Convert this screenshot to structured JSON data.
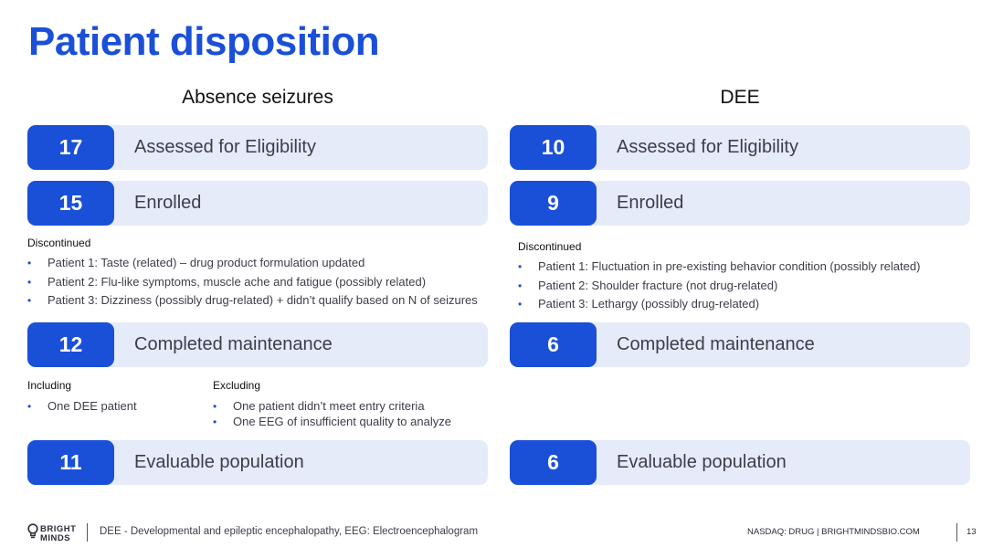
{
  "title": "Patient disposition",
  "left": {
    "heading": "Absence seizures",
    "rows": [
      {
        "count": "17",
        "label": "Assessed for Eligibility"
      },
      {
        "count": "15",
        "label": "Enrolled"
      },
      {
        "count": "12",
        "label": "Completed maintenance"
      },
      {
        "count": "11",
        "label": "Evaluable population"
      }
    ],
    "discontinued": {
      "heading": "Discontinued",
      "items": [
        "Patient 1: Taste (related) – drug product formulation updated",
        "Patient 2: Flu-like symptoms, muscle ache and fatigue (possibly related)",
        "Patient 3: Dizziness (possibly drug-related)  + didn’t qualify based on N of seizures"
      ]
    },
    "including": {
      "heading": "Including",
      "items": [
        "One DEE patient"
      ]
    },
    "excluding": {
      "heading": "Excluding",
      "items": [
        "One patient didn’t meet entry criteria",
        "One EEG of insufficient quality to analyze"
      ]
    }
  },
  "right": {
    "heading": "DEE",
    "rows": [
      {
        "count": "10",
        "label": "Assessed for Eligibility"
      },
      {
        "count": "9",
        "label": "Enrolled"
      },
      {
        "count": "6",
        "label": "Completed maintenance"
      },
      {
        "count": "6",
        "label": "Evaluable population"
      }
    ],
    "discontinued": {
      "heading": "Discontinued",
      "items": [
        "Patient 1: Fluctuation in pre-existing behavior condition (possibly related)",
        "Patient 2: Shoulder fracture (not drug-related)",
        "Patient 3: Lethargy (possibly drug-related)"
      ]
    }
  },
  "footer": {
    "logo_line1": "BRIGHT",
    "logo_line2": "MINDS",
    "footnote": "DEE - Developmental and epileptic encephalopathy, EEG: Electroencephalogram",
    "nasdaq": "NASDAQ: DRUG | BRIGHTMINDSBIO.COM",
    "page": "13"
  },
  "colors": {
    "accent": "#1a4fd8",
    "row_bg": "#e6ebfa"
  }
}
